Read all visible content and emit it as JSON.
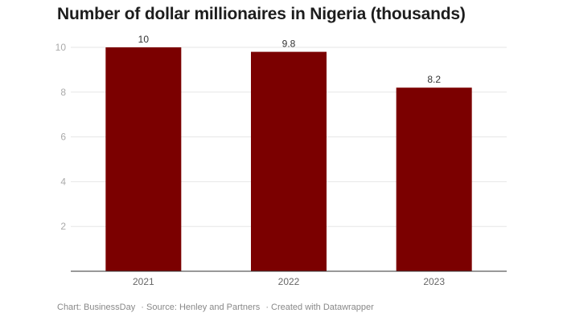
{
  "chart_data": {
    "type": "bar",
    "title": "Number of dollar millionaires in Nigeria (thousands)",
    "categories": [
      "2021",
      "2022",
      "2023"
    ],
    "values": [
      10,
      9.8,
      8.2
    ],
    "data_labels": [
      "10",
      "9.8",
      "8.2"
    ],
    "xlabel": "",
    "ylabel": "",
    "ylim": [
      0,
      10
    ],
    "yticks": [
      2,
      4,
      6,
      8,
      10
    ],
    "grid": true,
    "bar_color": "#7b0000"
  },
  "footer": {
    "chart_credit": "Chart: BusinessDay",
    "source": "· Source: Henley and Partners",
    "created_with": "· Created with Datawrapper"
  }
}
